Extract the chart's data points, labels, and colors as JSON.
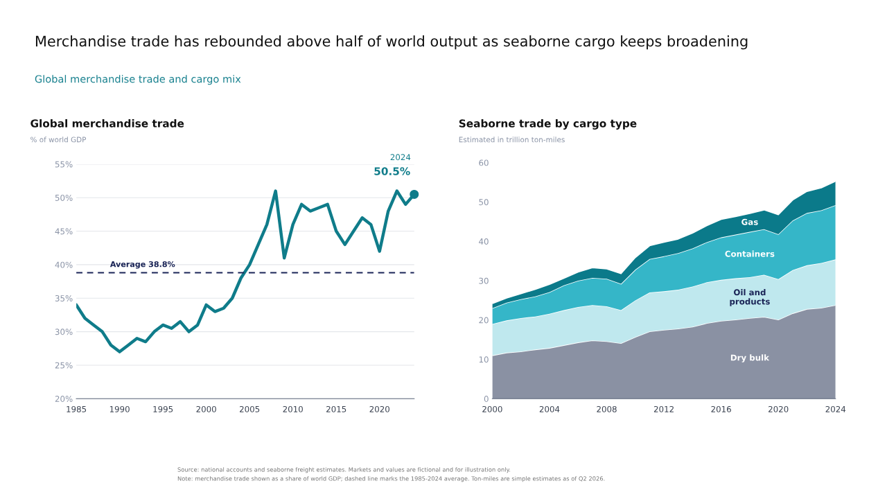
{
  "chart_data": [
    {
      "type": "line",
      "title": "Global merchandise trade",
      "subtitle": "% of world GDP",
      "annotations": [
        "Merchandise trade has rebounded above half of world output as seaborne cargo keeps broadening",
        "Global merchandise trade and cargo mix",
        "2024",
        {
          "text": "50.5%",
          "x": 2024,
          "y": 50.5
        }
      ],
      "x": [
        1985,
        1986,
        1987,
        1988,
        1989,
        1990,
        1991,
        1992,
        1993,
        1994,
        1995,
        1996,
        1997,
        1998,
        1999,
        2000,
        2001,
        2002,
        2003,
        2004,
        2005,
        2006,
        2007,
        2008,
        2009,
        2010,
        2011,
        2012,
        2013,
        2014,
        2015,
        2016,
        2017,
        2018,
        2019,
        2020,
        2021,
        2022,
        2023,
        2024
      ],
      "series": [
        {
          "color": "#0f7c8a",
          "values": [
            34,
            32,
            31,
            30,
            28,
            27,
            28,
            29,
            28.5,
            30,
            31,
            30.5,
            31.5,
            30,
            31,
            34,
            33,
            33.5,
            35,
            38,
            40,
            43,
            46,
            51,
            41,
            46,
            49,
            48,
            48.5,
            49,
            45,
            43,
            45,
            47,
            46,
            42,
            48,
            51,
            49,
            50.5
          ]
        },
        {
          "type": "scatter",
          "marker": "circle",
          "color": "#0f7c8a",
          "x": [
            2024
          ],
          "values": [
            50.5
          ]
        }
      ],
      "xlim": [
        1985,
        2024
      ],
      "xticks": [
        1985,
        1990,
        1995,
        2000,
        2005,
        2010,
        2015,
        2020
      ],
      "ylim": [
        20,
        55
      ],
      "yticks": [
        {
          "value": 20,
          "label": "20%"
        },
        {
          "value": 25,
          "label": "25%"
        },
        {
          "value": 30,
          "label": "30%"
        },
        {
          "value": 35,
          "label": "35%"
        },
        {
          "value": 40,
          "label": "40%"
        },
        {
          "value": 45,
          "label": "45%"
        },
        {
          "value": 50,
          "label": "50%"
        },
        {
          "value": 55,
          "label": "55%"
        }
      ],
      "grid": "y",
      "ref_lines": [
        {
          "axis": "y",
          "value": 38.8,
          "label": "Average 38.8%",
          "color": "#1b2557",
          "line_style": "dashed"
        }
      ]
    },
    {
      "type": "area",
      "stacked": true,
      "title": "Seaborne trade by cargo type",
      "subtitle": "Estimated in trillion ton-miles",
      "annotations": [
        "Source: national accounts and seaborne freight estimates. Markets and values are fictional and for illustration only.",
        "Note: merchandise trade shown as a share of world GDP; dashed line marks the 1985-2024 average. Ton-miles are simple estimates as of Q2 2026."
      ],
      "x": [
        2000,
        2001,
        2002,
        2003,
        2004,
        2005,
        2006,
        2007,
        2008,
        2009,
        2010,
        2011,
        2012,
        2013,
        2014,
        2015,
        2016,
        2017,
        2018,
        2019,
        2020,
        2021,
        2022,
        2023,
        2024
      ],
      "series": [
        {
          "name": "Dry bulk",
          "color": "#8a91a3",
          "values": [
            11,
            11.7,
            12,
            12.5,
            12.9,
            13.6,
            14.3,
            14.8,
            14.6,
            14.1,
            15.7,
            17.1,
            17.5,
            17.8,
            18.3,
            19.2,
            19.8,
            20.1,
            20.5,
            20.8,
            20.1,
            21.7,
            22.8,
            23.1,
            23.8
          ]
        },
        {
          "name": "Oil and\nproducts",
          "color": "#bfe8ee",
          "values": [
            8,
            8.2,
            8.5,
            8.4,
            8.7,
            8.9,
            9,
            9,
            8.9,
            8.4,
            9.3,
            9.9,
            9.8,
            9.9,
            10.2,
            10.4,
            10.4,
            10.5,
            10.4,
            10.7,
            10.3,
            11,
            11.1,
            11.4,
            11.6
          ]
        },
        {
          "name": "Containers",
          "color": "#35b6c8",
          "values": [
            4,
            4.5,
            4.8,
            5.1,
            5.5,
            6.3,
            6.7,
            6.9,
            7,
            6.7,
            7.8,
            8.5,
            8.9,
            9.3,
            9.7,
            10.2,
            10.8,
            11.1,
            11.5,
            11.6,
            11.4,
            12.6,
            13.3,
            13.4,
            13.8
          ]
        },
        {
          "name": "Gas",
          "color": "#0b7a8a",
          "values": [
            1.2,
            1.2,
            1.4,
            1.8,
            2,
            1.8,
            2.2,
            2.6,
            2.5,
            2.6,
            3.1,
            3.4,
            3.6,
            3.6,
            3.9,
            4.2,
            4.6,
            4.6,
            4.7,
            4.9,
            5,
            5.2,
            5.5,
            5.7,
            6.1
          ]
        }
      ],
      "xlim": [
        2000,
        2024
      ],
      "xticks": [
        2000,
        2004,
        2008,
        2012,
        2016,
        2020,
        2024
      ],
      "ylim": [
        0,
        60
      ],
      "yticks": [
        0,
        10,
        20,
        30,
        40,
        50,
        60
      ]
    }
  ]
}
